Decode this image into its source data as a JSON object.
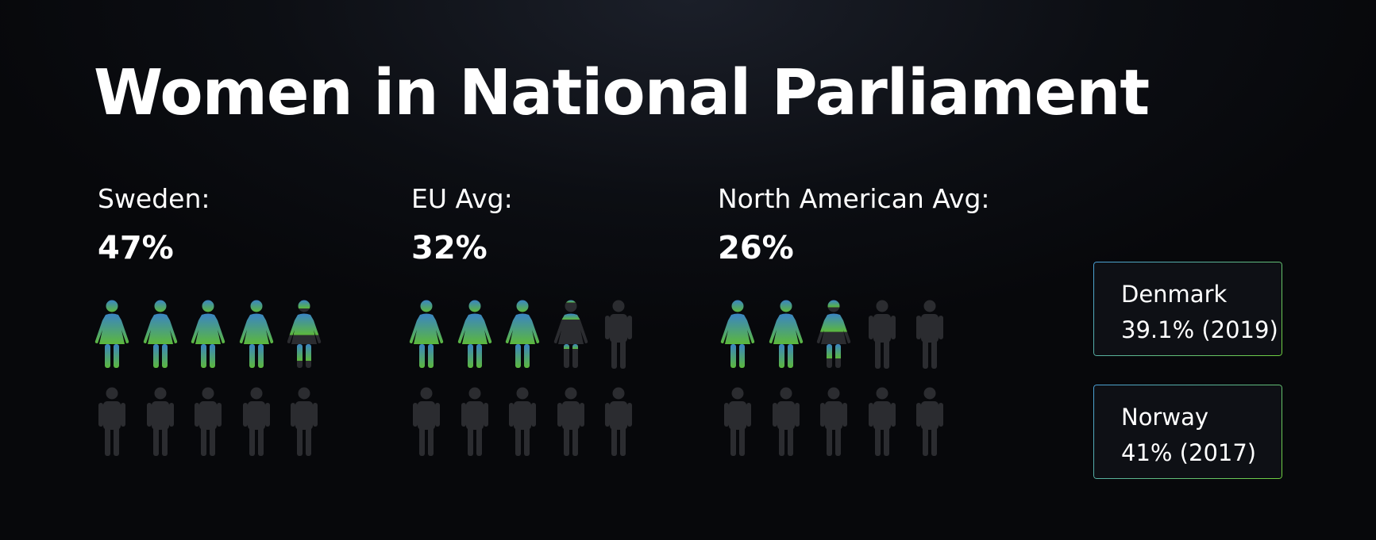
{
  "title": "Women in National Parliament",
  "colors": {
    "female_top": "#3a84c4",
    "female_bottom": "#5cb83c",
    "male": "#2b2c30",
    "callout_border_start": "#4aa0d8",
    "callout_border_end": "#6fcf3e"
  },
  "chart_data": {
    "type": "pictogram",
    "icons_per_group": 10,
    "series": [
      {
        "label": "Sweden:",
        "value_text": "47%",
        "value": 47
      },
      {
        "label": "EU Avg:",
        "value_text": "32%",
        "value": 32
      },
      {
        "label": "North American Avg:",
        "value_text": "26%",
        "value": 26
      }
    ]
  },
  "callouts": [
    {
      "country": "Denmark",
      "detail": "39.1% (2019)"
    },
    {
      "country": "Norway",
      "detail": "41% (2017)"
    }
  ]
}
